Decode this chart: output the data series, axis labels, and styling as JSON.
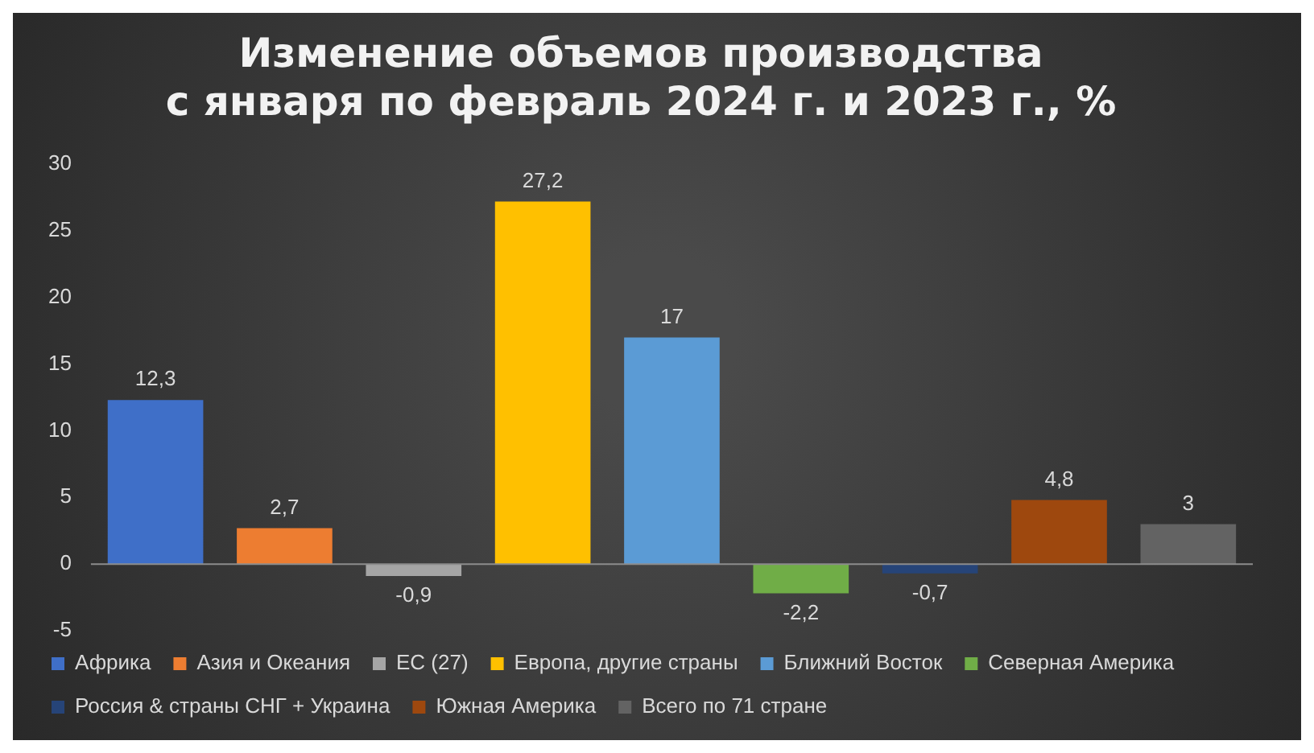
{
  "chart_data": {
    "type": "bar",
    "title": "Изменение объемов производства\nс января по февраль 2024 г. и 2023 г., %",
    "categories": [
      null,
      null,
      null,
      null,
      null,
      null,
      null,
      null,
      null
    ],
    "series": [
      {
        "name": "Африка",
        "color": "#3f6fc8",
        "values": [
          12.3,
          null,
          null,
          null,
          null,
          null,
          null,
          null,
          null
        ],
        "value_labels": [
          "12,3",
          null,
          null,
          null,
          null,
          null,
          null,
          null,
          null
        ]
      },
      {
        "name": "Азия и Океания",
        "color": "#ed7d31",
        "values": [
          null,
          2.7,
          null,
          null,
          null,
          null,
          null,
          null,
          null
        ],
        "value_labels": [
          null,
          "2,7",
          null,
          null,
          null,
          null,
          null,
          null,
          null
        ]
      },
      {
        "name": "ЕС (27)",
        "color": "#a5a5a5",
        "values": [
          null,
          null,
          -0.9,
          null,
          null,
          null,
          null,
          null,
          null
        ],
        "value_labels": [
          null,
          null,
          "-0,9",
          null,
          null,
          null,
          null,
          null,
          null
        ]
      },
      {
        "name": "Европа, другие страны",
        "color": "#ffc000",
        "values": [
          null,
          null,
          null,
          27.2,
          null,
          null,
          null,
          null,
          null
        ],
        "value_labels": [
          null,
          null,
          null,
          "27,2",
          null,
          null,
          null,
          null,
          null
        ]
      },
      {
        "name": "Ближний Восток",
        "color": "#5b9bd5",
        "values": [
          null,
          null,
          null,
          null,
          17,
          null,
          null,
          null,
          null
        ],
        "value_labels": [
          null,
          null,
          null,
          null,
          "17",
          null,
          null,
          null,
          null
        ]
      },
      {
        "name": "Северная Америка",
        "color": "#70ad47",
        "values": [
          null,
          null,
          null,
          null,
          null,
          -2.2,
          null,
          null,
          null
        ],
        "value_labels": [
          null,
          null,
          null,
          null,
          null,
          "-2,2",
          null,
          null,
          null
        ]
      },
      {
        "name": "Россия & страны СНГ + Украина",
        "color": "#264478",
        "values": [
          null,
          null,
          null,
          null,
          null,
          null,
          -0.7,
          null,
          null
        ],
        "value_labels": [
          null,
          null,
          null,
          null,
          null,
          null,
          "-0,7",
          null,
          null
        ]
      },
      {
        "name": "Южная Америка",
        "color": "#9e480e",
        "values": [
          null,
          null,
          null,
          null,
          null,
          null,
          null,
          4.8,
          null
        ],
        "value_labels": [
          null,
          null,
          null,
          null,
          null,
          null,
          null,
          "4,8",
          null
        ]
      },
      {
        "name": "Всего по 71 стране",
        "color": "#636363",
        "values": [
          null,
          null,
          null,
          null,
          null,
          null,
          null,
          null,
          3
        ],
        "value_labels": [
          null,
          null,
          null,
          null,
          null,
          null,
          null,
          null,
          "3"
        ]
      }
    ],
    "ylim": [
      -5,
      30
    ],
    "yticks": [
      -5,
      0,
      5,
      10,
      15,
      20,
      25,
      30
    ],
    "ref_lines": [
      {
        "axis": "y",
        "value": 0,
        "color": "#8c8c8c"
      }
    ],
    "legend": "bottom",
    "grid": false
  }
}
